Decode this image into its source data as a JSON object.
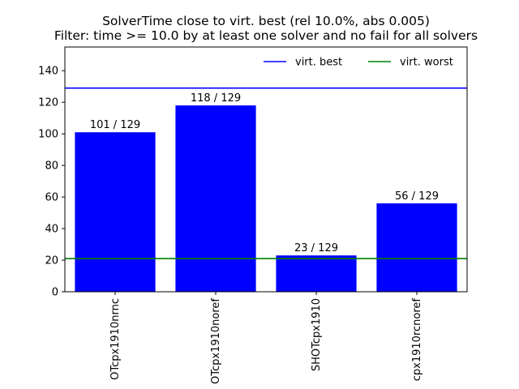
{
  "chart_data": {
    "type": "bar",
    "title_lines": [
      "SolverTime close to virt. best (rel 10.0%, abs 0.005)",
      "Filter: time >= 10.0 by at least one solver and no fail for all solvers"
    ],
    "categories": [
      "OTcpx1910nrnc",
      "OTcpx1910noref",
      "SHOTcpx1910",
      "cpx1910rcnoref"
    ],
    "values": [
      101,
      118,
      23,
      56
    ],
    "bar_labels": [
      "101 / 129",
      "118 / 129",
      "23 / 129",
      "56 / 129"
    ],
    "bar_color": "#0000ff",
    "ylim": [
      0,
      155
    ],
    "yticks": [
      0,
      20,
      40,
      60,
      80,
      100,
      120,
      140
    ],
    "xlabel": "",
    "ylabel": "",
    "reference_lines": [
      {
        "name": "virt. best",
        "value": 129,
        "color": "#0000ff"
      },
      {
        "name": "virt. worst",
        "value": 21,
        "color": "#008000"
      }
    ],
    "legend": {
      "position": "top-right",
      "frame": false
    },
    "grid": false
  }
}
